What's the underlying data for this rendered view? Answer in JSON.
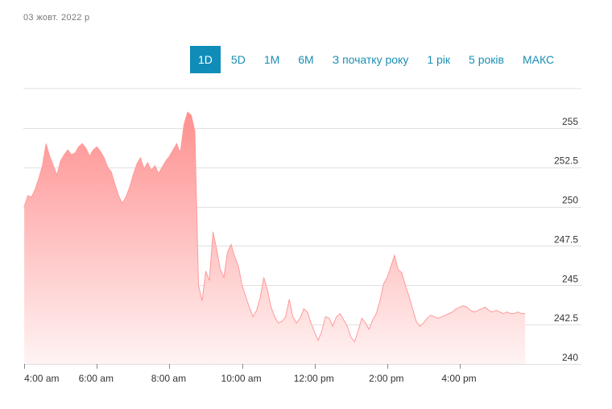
{
  "header": {
    "date": "03 жовт. 2022 р"
  },
  "range_tabs": [
    {
      "label": "1D",
      "active": true
    },
    {
      "label": "5D",
      "active": false
    },
    {
      "label": "1M",
      "active": false
    },
    {
      "label": "6M",
      "active": false
    },
    {
      "label": "З початку року",
      "active": false
    },
    {
      "label": "1 рік",
      "active": false
    },
    {
      "label": "5 років",
      "active": false
    },
    {
      "label": "МАКС",
      "active": false
    }
  ],
  "colors": {
    "area_fill_top": "#ff8f8f",
    "area_fill_bottom": "#fff3f3",
    "line": "#ff9a9a",
    "accent": "#0f8cb8",
    "grid": "#e0e0e0"
  },
  "chart_data": {
    "type": "area",
    "title": "",
    "xlabel": "",
    "ylabel": "",
    "ylim": [
      240,
      257.5
    ],
    "y_ticks": [
      240,
      242.5,
      245,
      247.5,
      250,
      252.5,
      255
    ],
    "y_tick_labels": [
      "240",
      "242.5",
      "245",
      "247.5",
      "250",
      "252.5",
      "255"
    ],
    "y_axis_side": "right",
    "grid": true,
    "x_ticks": [
      "4:00 am",
      "6:00 am",
      "8:00 am",
      "10:00 am",
      "12:00 pm",
      "2:00 pm",
      "4:00 pm"
    ],
    "x_tick_hours": [
      4,
      6,
      8,
      10,
      12,
      14,
      16
    ],
    "series": [
      {
        "x": [
          4.0,
          4.1,
          4.2,
          4.3,
          4.4,
          4.5,
          4.6,
          4.7,
          4.8,
          4.9,
          5.0,
          5.1,
          5.2,
          5.3,
          5.4,
          5.5,
          5.6,
          5.7,
          5.8,
          5.9,
          6.0,
          6.1,
          6.2,
          6.3,
          6.4,
          6.5,
          6.6,
          6.7,
          6.8,
          6.9,
          7.0,
          7.1,
          7.2,
          7.3,
          7.4,
          7.5,
          7.6,
          7.7,
          7.8,
          7.9,
          8.0,
          8.1,
          8.2,
          8.3,
          8.4,
          8.5,
          8.6,
          8.7,
          8.8,
          8.9,
          9.0,
          9.1,
          9.2,
          9.3,
          9.4,
          9.5,
          9.6,
          9.7,
          9.8,
          9.9,
          10.0,
          10.1,
          10.2,
          10.3,
          10.4,
          10.5,
          10.6,
          10.7,
          10.8,
          10.9,
          11.0,
          11.1,
          11.2,
          11.3,
          11.4,
          11.5,
          11.6,
          11.7,
          11.8,
          11.9,
          12.0,
          12.1,
          12.2,
          12.3,
          12.4,
          12.5,
          12.6,
          12.7,
          12.8,
          12.9,
          13.0,
          13.1,
          13.2,
          13.3,
          13.4,
          13.5,
          13.6,
          13.7,
          13.8,
          13.9,
          14.0,
          14.1,
          14.2,
          14.3,
          14.4,
          14.5,
          14.6,
          14.7,
          14.8,
          14.9,
          15.0,
          15.1,
          15.2,
          15.3,
          15.4,
          15.5,
          15.6,
          15.7,
          15.8,
          15.9,
          16.0,
          16.1,
          16.2,
          16.3,
          16.4,
          16.5,
          16.6,
          16.7,
          16.8,
          16.9,
          17.0,
          17.1,
          17.2,
          17.3,
          17.4,
          17.5,
          17.6,
          17.7,
          17.8
        ],
        "values": [
          250.0,
          250.7,
          250.6,
          251.1,
          251.8,
          252.6,
          254.0,
          253.2,
          252.6,
          252.0,
          252.9,
          253.3,
          253.6,
          253.3,
          253.4,
          253.8,
          254.0,
          253.7,
          253.2,
          253.6,
          253.8,
          253.5,
          253.1,
          252.5,
          252.2,
          251.4,
          250.7,
          250.2,
          250.6,
          251.2,
          252.0,
          252.7,
          253.1,
          252.4,
          252.8,
          252.3,
          252.6,
          252.1,
          252.5,
          252.9,
          253.2,
          253.6,
          254.0,
          253.4,
          255.2,
          256.0,
          255.8,
          254.8,
          245.0,
          244.0,
          245.9,
          245.3,
          248.4,
          247.3,
          246.0,
          245.5,
          247.1,
          247.6,
          246.8,
          246.2,
          245.0,
          244.3,
          243.6,
          243.0,
          243.4,
          244.2,
          245.5,
          244.7,
          243.6,
          243.0,
          242.6,
          242.7,
          243.0,
          244.1,
          243.0,
          242.6,
          242.9,
          243.5,
          243.3,
          242.6,
          242.0,
          241.5,
          242.1,
          243.0,
          242.9,
          242.4,
          243.0,
          243.2,
          242.8,
          242.4,
          241.7,
          241.4,
          242.1,
          242.9,
          242.6,
          242.2,
          242.8,
          243.2,
          244.0,
          245.1,
          245.5,
          246.2,
          246.9,
          246.0,
          245.8,
          245.0,
          244.3,
          243.5,
          242.7,
          242.4,
          242.6,
          242.9,
          243.1,
          243.0,
          242.9,
          243.0,
          243.1,
          243.2,
          243.3,
          243.5,
          243.6,
          243.7,
          243.6,
          243.4,
          243.3,
          243.4,
          243.5,
          243.6,
          243.4,
          243.3,
          243.4,
          243.3,
          243.2,
          243.3,
          243.2,
          243.2,
          243.3,
          243.2,
          243.2
        ]
      }
    ]
  }
}
